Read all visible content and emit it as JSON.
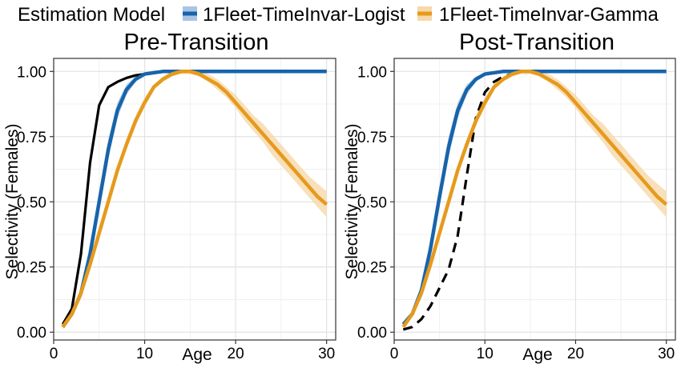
{
  "legend": {
    "title": "Estimation Model",
    "entries": [
      {
        "label": "1Fleet-TimeInvar-Logist",
        "color": "#1764AB",
        "band_color": "#A9C4E4"
      },
      {
        "label": "1Fleet-TimeInvar-Gamma",
        "color": "#E69A1C",
        "band_color": "#F6D8AA"
      }
    ]
  },
  "chart_data": [
    {
      "type": "line",
      "title": "Pre-Transition",
      "xlabel": "Age",
      "ylabel": "Selectivity (Females)",
      "xlim": [
        0,
        31
      ],
      "ylim": [
        -0.03,
        1.05
      ],
      "xticks": [
        0,
        10,
        20,
        30
      ],
      "yticks": [
        "0.00",
        "0.25",
        "0.50",
        "0.75",
        "1.00"
      ],
      "grid": true,
      "series": [
        {
          "name": "1Fleet-TimeInvar-Logist",
          "color": "#1764AB",
          "band_color": "#A9C4E4",
          "x": [
            1,
            2,
            3,
            4,
            5,
            6,
            7,
            8,
            9,
            10,
            11,
            12,
            13,
            14,
            15,
            16,
            17,
            18,
            19,
            20,
            21,
            22,
            23,
            24,
            25,
            26,
            27,
            28,
            29,
            30
          ],
          "y": [
            0.02,
            0.07,
            0.15,
            0.3,
            0.5,
            0.7,
            0.85,
            0.93,
            0.97,
            0.99,
            0.995,
            1,
            1,
            1,
            1,
            1,
            1,
            1,
            1,
            1,
            1,
            1,
            1,
            1,
            1,
            1,
            1,
            1,
            1,
            1
          ],
          "lower": [
            0.02,
            0.06,
            0.13,
            0.27,
            0.46,
            0.66,
            0.82,
            0.91,
            0.96,
            0.985,
            0.99,
            1,
            1,
            1,
            1,
            1,
            1,
            1,
            1,
            1,
            1,
            1,
            1,
            1,
            1,
            1,
            1,
            1,
            1,
            1
          ],
          "upper": [
            0.03,
            0.08,
            0.17,
            0.33,
            0.54,
            0.74,
            0.88,
            0.95,
            0.98,
            0.995,
            1,
            1,
            1,
            1,
            1,
            1,
            1,
            1,
            1,
            1,
            1,
            1,
            1,
            1,
            1,
            1,
            1,
            1,
            1,
            1
          ]
        },
        {
          "name": "1Fleet-TimeInvar-Gamma",
          "color": "#E69A1C",
          "band_color": "#F6D8AA",
          "x": [
            1,
            2,
            3,
            4,
            5,
            6,
            7,
            8,
            9,
            10,
            11,
            12,
            13,
            14,
            15,
            16,
            17,
            18,
            19,
            20,
            21,
            22,
            23,
            24,
            25,
            26,
            27,
            28,
            29,
            30
          ],
          "y": [
            0.02,
            0.07,
            0.15,
            0.26,
            0.38,
            0.5,
            0.62,
            0.72,
            0.81,
            0.88,
            0.94,
            0.97,
            0.99,
            1,
            1,
            0.99,
            0.97,
            0.95,
            0.92,
            0.88,
            0.84,
            0.8,
            0.76,
            0.72,
            0.68,
            0.64,
            0.6,
            0.56,
            0.52,
            0.49
          ],
          "lower": [
            0.01,
            0.06,
            0.13,
            0.24,
            0.36,
            0.48,
            0.6,
            0.7,
            0.79,
            0.87,
            0.93,
            0.96,
            0.98,
            0.99,
            0.99,
            0.98,
            0.96,
            0.93,
            0.9,
            0.86,
            0.81,
            0.77,
            0.73,
            0.68,
            0.64,
            0.6,
            0.56,
            0.52,
            0.48,
            0.44
          ],
          "upper": [
            0.03,
            0.08,
            0.17,
            0.28,
            0.4,
            0.52,
            0.64,
            0.74,
            0.83,
            0.9,
            0.95,
            0.98,
            1,
            1,
            1,
            1,
            0.99,
            0.97,
            0.94,
            0.91,
            0.87,
            0.83,
            0.8,
            0.76,
            0.72,
            0.68,
            0.64,
            0.6,
            0.57,
            0.54
          ]
        },
        {
          "name": "",
          "color": "#000000",
          "style": "solid",
          "x": [
            1,
            2,
            3,
            4,
            5,
            6,
            7,
            8,
            9,
            10,
            11,
            12,
            13,
            14,
            15,
            16,
            17,
            18,
            19,
            20,
            21,
            22,
            23,
            24,
            25,
            26,
            27,
            28,
            29,
            30
          ],
          "y": [
            0.03,
            0.09,
            0.3,
            0.65,
            0.87,
            0.94,
            0.96,
            0.975,
            0.985,
            0.99,
            0.997,
            1,
            1,
            1,
            1,
            1,
            1,
            1,
            1,
            1,
            1,
            1,
            1,
            1,
            1,
            1,
            1,
            1,
            1,
            1
          ]
        }
      ]
    },
    {
      "type": "line",
      "title": "Post-Transition",
      "xlabel": "Age",
      "ylabel": "Selectivity (Females)",
      "xlim": [
        0,
        31
      ],
      "ylim": [
        -0.03,
        1.05
      ],
      "xticks": [
        0,
        10,
        20,
        30
      ],
      "yticks": [
        "0.00",
        "0.25",
        "0.50",
        "0.75",
        "1.00"
      ],
      "grid": true,
      "series": [
        {
          "name": "1Fleet-TimeInvar-Logist",
          "color": "#1764AB",
          "band_color": "#A9C4E4",
          "x": [
            1,
            2,
            3,
            4,
            5,
            6,
            7,
            8,
            9,
            10,
            11,
            12,
            13,
            14,
            15,
            16,
            17,
            18,
            19,
            20,
            21,
            22,
            23,
            24,
            25,
            26,
            27,
            28,
            29,
            30
          ],
          "y": [
            0.03,
            0.07,
            0.16,
            0.32,
            0.52,
            0.71,
            0.85,
            0.93,
            0.97,
            0.99,
            0.995,
            1,
            1,
            1,
            1,
            1,
            1,
            1,
            1,
            1,
            1,
            1,
            1,
            1,
            1,
            1,
            1,
            1,
            1,
            1
          ],
          "lower": [
            0.02,
            0.06,
            0.14,
            0.29,
            0.48,
            0.67,
            0.82,
            0.91,
            0.96,
            0.985,
            0.99,
            1,
            1,
            1,
            1,
            1,
            1,
            1,
            1,
            1,
            1,
            1,
            1,
            1,
            1,
            1,
            1,
            1,
            1,
            1
          ],
          "upper": [
            0.04,
            0.08,
            0.18,
            0.35,
            0.56,
            0.75,
            0.88,
            0.95,
            0.98,
            0.995,
            1,
            1,
            1,
            1,
            1,
            1,
            1,
            1,
            1,
            1,
            1,
            1,
            1,
            1,
            1,
            1,
            1,
            1,
            1,
            1
          ]
        },
        {
          "name": "1Fleet-TimeInvar-Gamma",
          "color": "#E69A1C",
          "band_color": "#F6D8AA",
          "x": [
            1,
            2,
            3,
            4,
            5,
            6,
            7,
            8,
            9,
            10,
            11,
            12,
            13,
            14,
            15,
            16,
            17,
            18,
            19,
            20,
            21,
            22,
            23,
            24,
            25,
            26,
            27,
            28,
            29,
            30
          ],
          "y": [
            0.02,
            0.07,
            0.15,
            0.26,
            0.38,
            0.5,
            0.62,
            0.72,
            0.81,
            0.88,
            0.94,
            0.97,
            0.99,
            1,
            1,
            0.99,
            0.97,
            0.95,
            0.92,
            0.88,
            0.84,
            0.8,
            0.76,
            0.72,
            0.68,
            0.64,
            0.6,
            0.56,
            0.52,
            0.49
          ],
          "lower": [
            0.01,
            0.06,
            0.13,
            0.24,
            0.36,
            0.48,
            0.6,
            0.7,
            0.79,
            0.87,
            0.93,
            0.96,
            0.98,
            0.99,
            0.99,
            0.98,
            0.96,
            0.93,
            0.9,
            0.86,
            0.81,
            0.77,
            0.73,
            0.68,
            0.64,
            0.6,
            0.56,
            0.52,
            0.48,
            0.44
          ],
          "upper": [
            0.03,
            0.08,
            0.17,
            0.28,
            0.4,
            0.52,
            0.64,
            0.74,
            0.83,
            0.9,
            0.95,
            0.98,
            1,
            1,
            1,
            1,
            0.99,
            0.97,
            0.94,
            0.91,
            0.87,
            0.83,
            0.8,
            0.76,
            0.72,
            0.68,
            0.64,
            0.6,
            0.57,
            0.54
          ]
        },
        {
          "name": "",
          "color": "#000000",
          "style": "dashed",
          "x": [
            1,
            2,
            3,
            4,
            5,
            6,
            7,
            8,
            9,
            10,
            11,
            12,
            13,
            14,
            15,
            16,
            17,
            18,
            19,
            20,
            21,
            22,
            23,
            24,
            25,
            26,
            27,
            28,
            29,
            30
          ],
          "y": [
            0.01,
            0.02,
            0.05,
            0.1,
            0.17,
            0.24,
            0.37,
            0.6,
            0.82,
            0.92,
            0.96,
            0.98,
            0.99,
            1,
            1,
            1,
            1,
            1,
            1,
            1,
            1,
            1,
            1,
            1,
            1,
            1,
            1,
            1,
            1,
            1
          ]
        }
      ]
    }
  ]
}
